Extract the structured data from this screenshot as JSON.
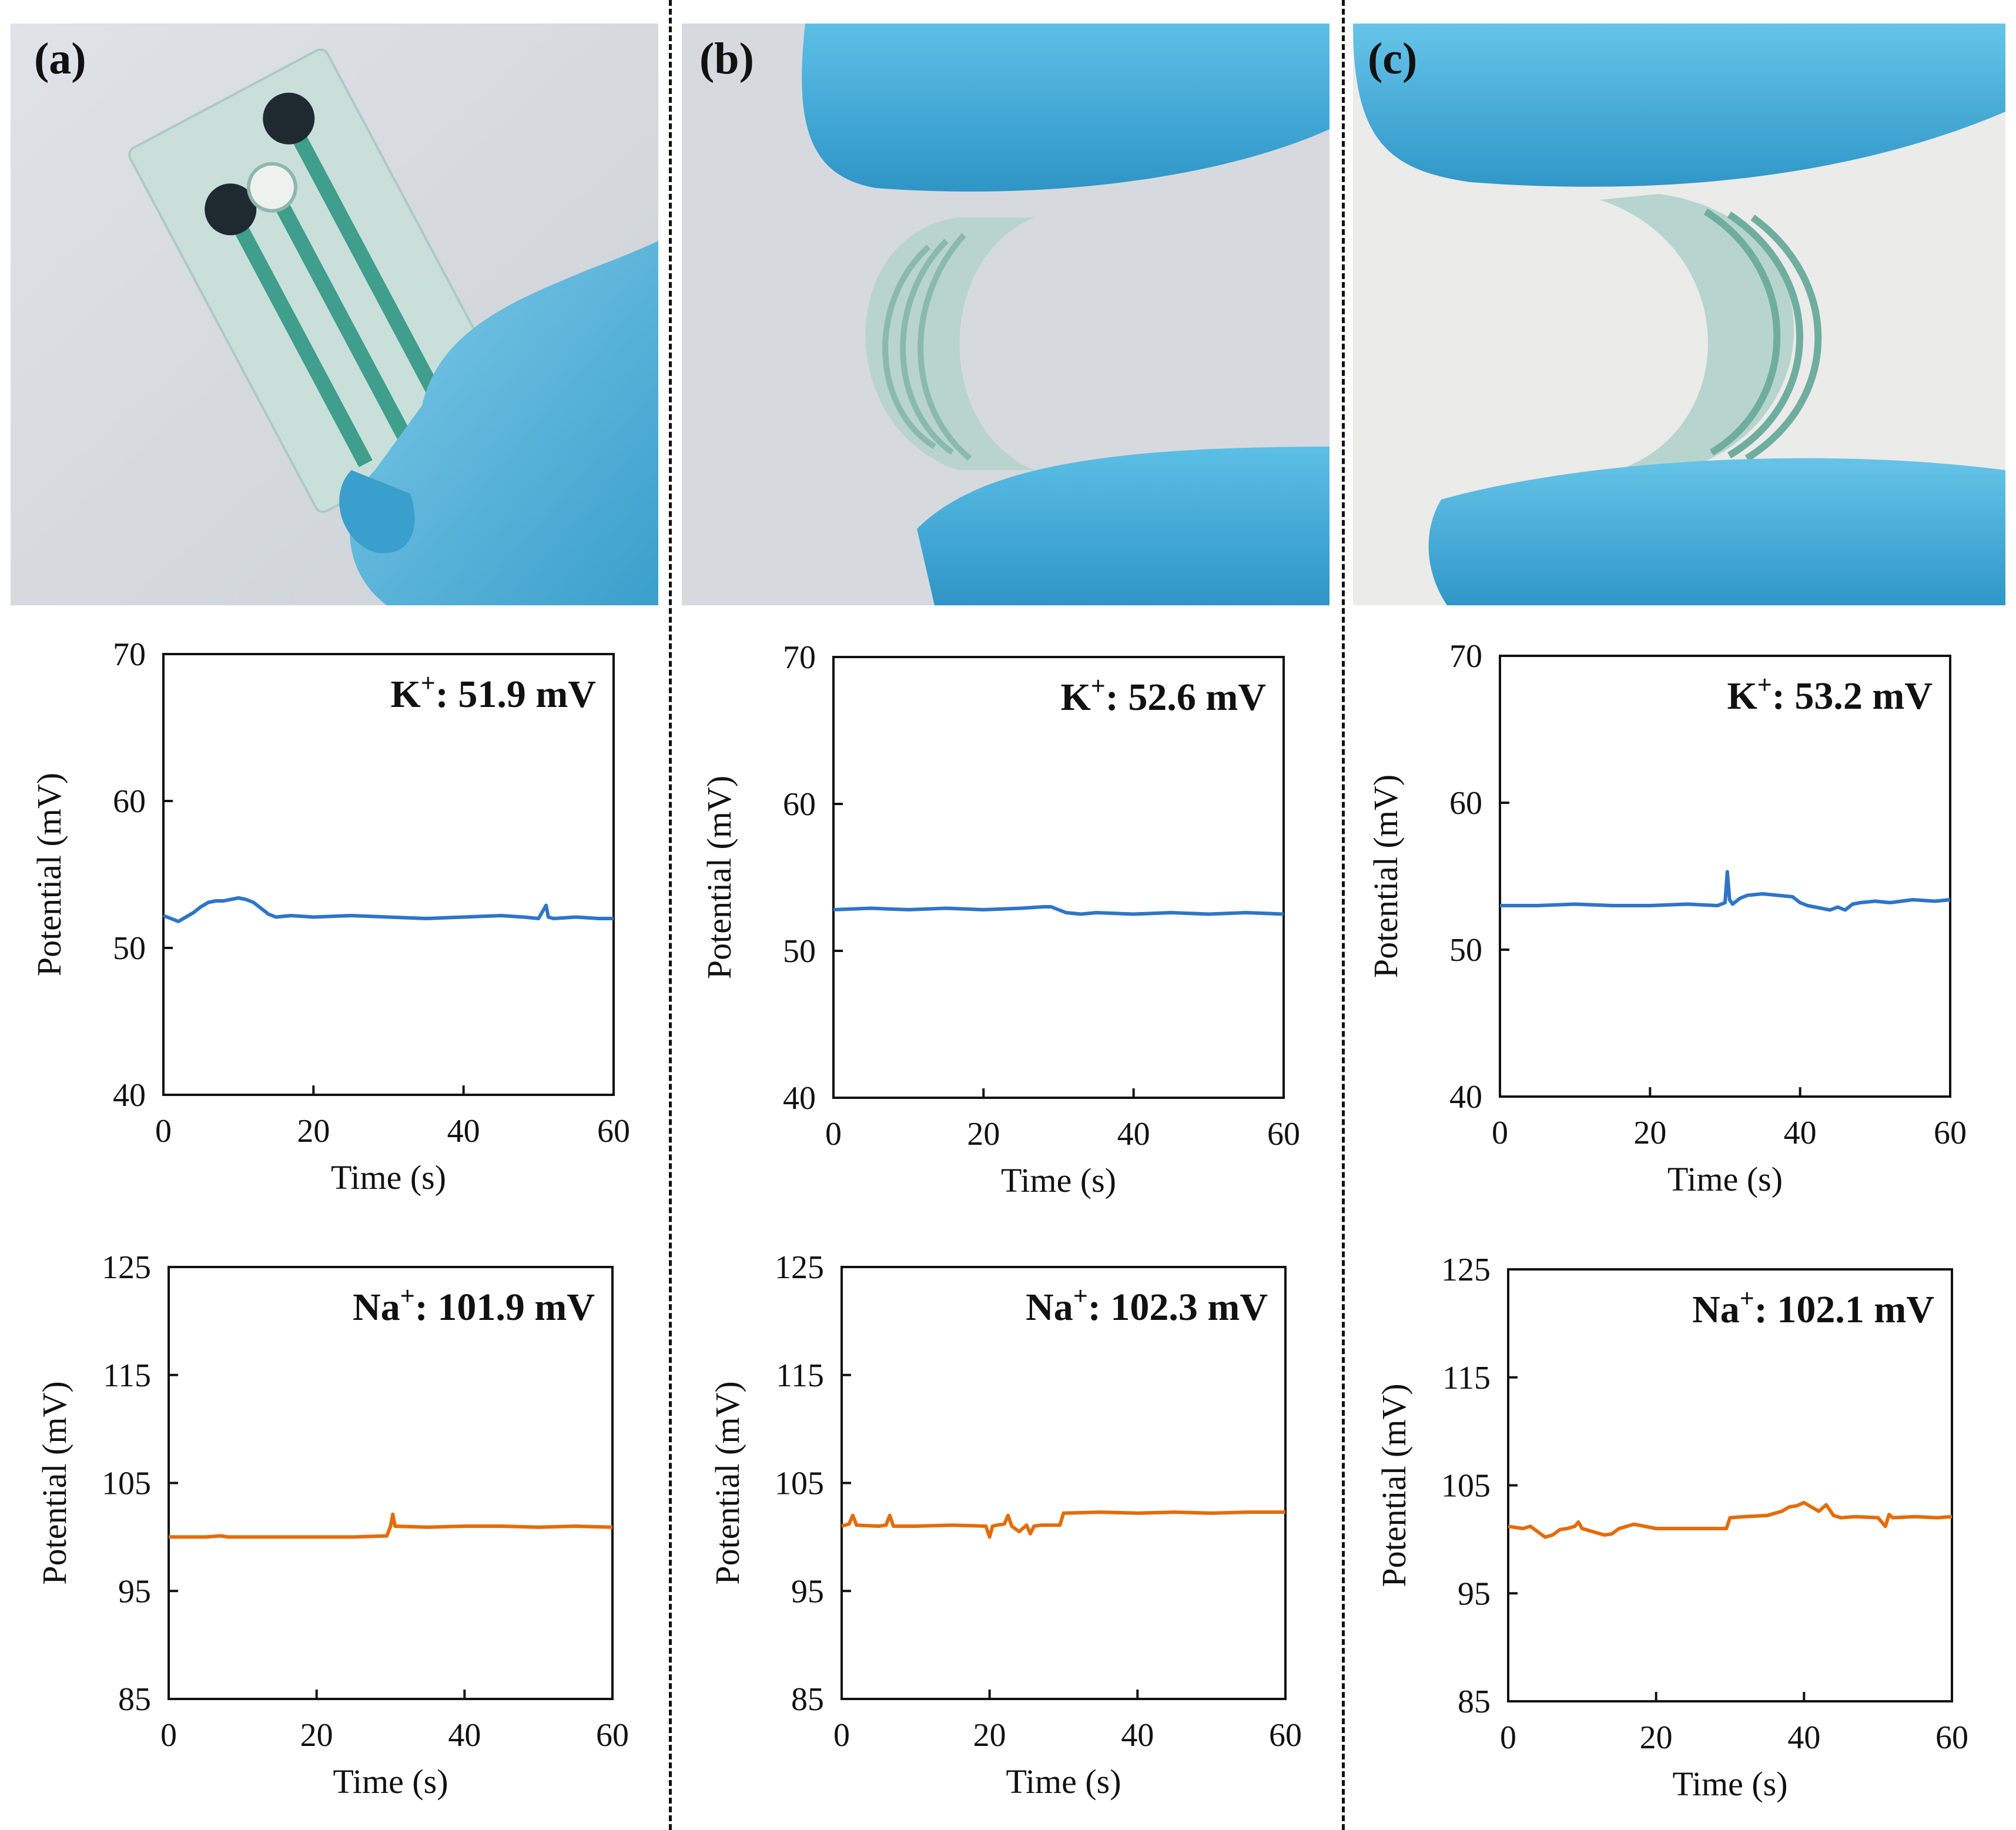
{
  "figure": {
    "panel_labels": [
      "(a)",
      "(b)",
      "(c)"
    ],
    "colors": {
      "k_series": "#2E75C9",
      "na_series": "#E46C0A",
      "glove": "#4FB3DA",
      "background": "#d9dde1"
    }
  },
  "chart_data": [
    {
      "id": "a-k",
      "type": "line",
      "ion": "K+",
      "ion_base": "K",
      "ion_sup": "+",
      "annotation_value": ": 51.9 mV",
      "xlabel": "Time (s)",
      "ylabel": "Potential (mV)",
      "xlim": [
        0,
        60
      ],
      "ylim": [
        40,
        70
      ],
      "xticks": [
        0,
        20,
        40,
        60
      ],
      "yticks": [
        40,
        50,
        60,
        70
      ],
      "series": [
        {
          "name": "K+",
          "color": "#2E75C9",
          "x": [
            0,
            1,
            2,
            3,
            4,
            5,
            6,
            7,
            8,
            9,
            10,
            11,
            12,
            13,
            14,
            15,
            17,
            20,
            25,
            30,
            35,
            40,
            45,
            48,
            50,
            51,
            51.3,
            52,
            55,
            58,
            60
          ],
          "y": [
            52.2,
            52.0,
            51.8,
            52.1,
            52.4,
            52.8,
            53.1,
            53.2,
            53.2,
            53.3,
            53.4,
            53.3,
            53.1,
            52.7,
            52.3,
            52.1,
            52.2,
            52.1,
            52.2,
            52.1,
            52.0,
            52.1,
            52.2,
            52.1,
            52.0,
            52.9,
            52.1,
            52.0,
            52.1,
            52.0,
            52.0
          ]
        }
      ]
    },
    {
      "id": "b-k",
      "type": "line",
      "ion": "K+",
      "ion_base": "K",
      "ion_sup": "+",
      "annotation_value": ": 52.6 mV",
      "xlabel": "Time (s)",
      "ylabel": "Potential (mV)",
      "xlim": [
        0,
        60
      ],
      "ylim": [
        40,
        70
      ],
      "xticks": [
        0,
        20,
        40,
        60
      ],
      "yticks": [
        40,
        50,
        60,
        70
      ],
      "series": [
        {
          "name": "K+",
          "color": "#2E75C9",
          "x": [
            0,
            5,
            10,
            15,
            20,
            25,
            28,
            29,
            30,
            31,
            33,
            35,
            40,
            45,
            50,
            55,
            60
          ],
          "y": [
            52.8,
            52.9,
            52.8,
            52.9,
            52.8,
            52.9,
            53.0,
            53.0,
            52.8,
            52.6,
            52.5,
            52.6,
            52.5,
            52.6,
            52.5,
            52.6,
            52.5
          ]
        }
      ]
    },
    {
      "id": "c-k",
      "type": "line",
      "ion": "K+",
      "ion_base": "K",
      "ion_sup": "+",
      "annotation_value": ": 53.2 mV",
      "xlabel": "Time (s)",
      "ylabel": "Potential (mV)",
      "xlim": [
        0,
        60
      ],
      "ylim": [
        40,
        70
      ],
      "xticks": [
        0,
        20,
        40,
        60
      ],
      "yticks": [
        40,
        50,
        60,
        70
      ],
      "series": [
        {
          "name": "K+",
          "color": "#2E75C9",
          "x": [
            0,
            5,
            10,
            15,
            20,
            25,
            29,
            30,
            30.3,
            30.6,
            31,
            32,
            33,
            35,
            37,
            39,
            40,
            41,
            42,
            43,
            44,
            45,
            46,
            47,
            48,
            50,
            52,
            55,
            58,
            60
          ],
          "y": [
            53.0,
            53.0,
            53.1,
            53.0,
            53.0,
            53.1,
            53.0,
            53.2,
            55.3,
            53.4,
            53.1,
            53.5,
            53.7,
            53.8,
            53.7,
            53.6,
            53.2,
            53.0,
            52.9,
            52.8,
            52.7,
            52.9,
            52.7,
            53.1,
            53.2,
            53.3,
            53.2,
            53.4,
            53.3,
            53.4
          ]
        }
      ]
    },
    {
      "id": "a-na",
      "type": "line",
      "ion": "Na+",
      "ion_base": "Na",
      "ion_sup": "+",
      "annotation_value": ": 101.9 mV",
      "xlabel": "Time (s)",
      "ylabel": "Potential (mV)",
      "xlim": [
        0,
        60
      ],
      "ylim": [
        85,
        125
      ],
      "xticks": [
        0,
        20,
        40,
        60
      ],
      "yticks": [
        85,
        95,
        105,
        115,
        125
      ],
      "series": [
        {
          "name": "Na+",
          "color": "#E46C0A",
          "x": [
            0,
            5,
            7,
            8,
            10,
            15,
            20,
            25,
            29.5,
            30,
            30.3,
            30.6,
            35,
            40,
            45,
            50,
            55,
            60
          ],
          "y": [
            100.0,
            100.0,
            100.1,
            100.0,
            100.0,
            100.0,
            100.0,
            100.0,
            100.1,
            101.0,
            102.1,
            101.0,
            100.9,
            101.0,
            101.0,
            100.9,
            101.0,
            100.9
          ]
        }
      ]
    },
    {
      "id": "b-na",
      "type": "line",
      "ion": "Na+",
      "ion_base": "Na",
      "ion_sup": "+",
      "annotation_value": ": 102.3 mV",
      "xlabel": "Time (s)",
      "ylabel": "Potential (mV)",
      "xlim": [
        0,
        60
      ],
      "ylim": [
        85,
        125
      ],
      "xticks": [
        0,
        20,
        40,
        60
      ],
      "yticks": [
        85,
        95,
        105,
        115,
        125
      ],
      "series": [
        {
          "name": "Na+",
          "color": "#E46C0A",
          "x": [
            0,
            1,
            1.5,
            2,
            5,
            6,
            6.5,
            7,
            10,
            15,
            19.5,
            20,
            20.4,
            21,
            22,
            22.5,
            23,
            24,
            25,
            25.5,
            26,
            27,
            29.5,
            30,
            35,
            40,
            45,
            50,
            55,
            60
          ],
          "y": [
            101.0,
            101.2,
            102.0,
            101.1,
            101.0,
            101.1,
            102.0,
            101.0,
            101.0,
            101.1,
            101.0,
            100.0,
            101.0,
            101.1,
            101.2,
            102.0,
            101.0,
            100.5,
            101.1,
            100.3,
            101.0,
            101.1,
            101.1,
            102.2,
            102.3,
            102.2,
            102.3,
            102.2,
            102.3,
            102.3
          ]
        }
      ]
    },
    {
      "id": "c-na",
      "type": "line",
      "ion": "Na+",
      "ion_base": "Na",
      "ion_sup": "+",
      "annotation_value": ": 102.1 mV",
      "xlabel": "Time (s)",
      "ylabel": "Potential (mV)",
      "xlim": [
        0,
        60
      ],
      "ylim": [
        85,
        125
      ],
      "xticks": [
        0,
        20,
        40,
        60
      ],
      "yticks": [
        85,
        95,
        105,
        115,
        125
      ],
      "series": [
        {
          "name": "Na+",
          "color": "#E46C0A",
          "x": [
            0,
            2,
            3,
            4,
            5,
            6,
            7,
            8,
            9,
            9.5,
            10,
            12,
            13,
            14,
            15,
            17,
            20,
            25,
            29.5,
            30,
            32,
            35,
            37,
            38,
            39,
            40,
            41,
            42,
            43,
            44,
            45,
            47,
            50,
            51,
            51.5,
            52,
            55,
            58,
            60
          ],
          "y": [
            101.2,
            101.0,
            101.2,
            100.7,
            100.2,
            100.4,
            100.9,
            101.0,
            101.2,
            101.6,
            101.0,
            100.6,
            100.4,
            100.5,
            101.0,
            101.4,
            101.0,
            101.0,
            101.0,
            102.0,
            102.1,
            102.2,
            102.6,
            103.0,
            103.1,
            103.4,
            103.0,
            102.6,
            103.2,
            102.2,
            102.0,
            102.1,
            102.0,
            101.2,
            102.3,
            102.0,
            102.1,
            102.0,
            102.1
          ]
        }
      ]
    }
  ]
}
